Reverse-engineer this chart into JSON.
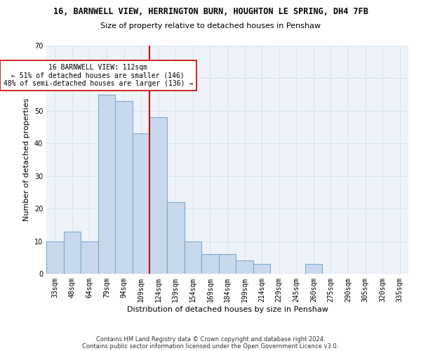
{
  "title_line1": "16, BARNWELL VIEW, HERRINGTON BURN, HOUGHTON LE SPRING, DH4 7FB",
  "title_line2": "Size of property relative to detached houses in Penshaw",
  "xlabel": "Distribution of detached houses by size in Penshaw",
  "ylabel": "Number of detached properties",
  "categories": [
    "33sqm",
    "48sqm",
    "64sqm",
    "79sqm",
    "94sqm",
    "109sqm",
    "124sqm",
    "139sqm",
    "154sqm",
    "169sqm",
    "184sqm",
    "199sqm",
    "214sqm",
    "229sqm",
    "245sqm",
    "260sqm",
    "275sqm",
    "290sqm",
    "305sqm",
    "320sqm",
    "335sqm"
  ],
  "values": [
    10,
    13,
    10,
    55,
    53,
    43,
    48,
    22,
    10,
    6,
    6,
    4,
    3,
    0,
    0,
    3,
    0,
    0,
    0,
    0,
    0
  ],
  "bar_color": "#c9d9ed",
  "bar_edgecolor": "#7aaace",
  "bar_linewidth": 0.8,
  "vline_color": "#cc0000",
  "vline_linewidth": 1.5,
  "annotation_text": "16 BARNWELL VIEW: 112sqm\n← 51% of detached houses are smaller (146)\n48% of semi-detached houses are larger (136) →",
  "annotation_box_color": "#ffffff",
  "annotation_box_edgecolor": "#cc0000",
  "ylim": [
    0,
    70
  ],
  "yticks": [
    0,
    10,
    20,
    30,
    40,
    50,
    60,
    70
  ],
  "grid_color": "#d8e4f0",
  "background_color": "#eef2f9",
  "footer_line1": "Contains HM Land Registry data © Crown copyright and database right 2024.",
  "footer_line2": "Contains public sector information licensed under the Open Government Licence v3.0.",
  "title_fontsize": 8.5,
  "subtitle_fontsize": 8,
  "axis_label_fontsize": 8,
  "tick_fontsize": 7,
  "annotation_fontsize": 7,
  "footer_fontsize": 6
}
